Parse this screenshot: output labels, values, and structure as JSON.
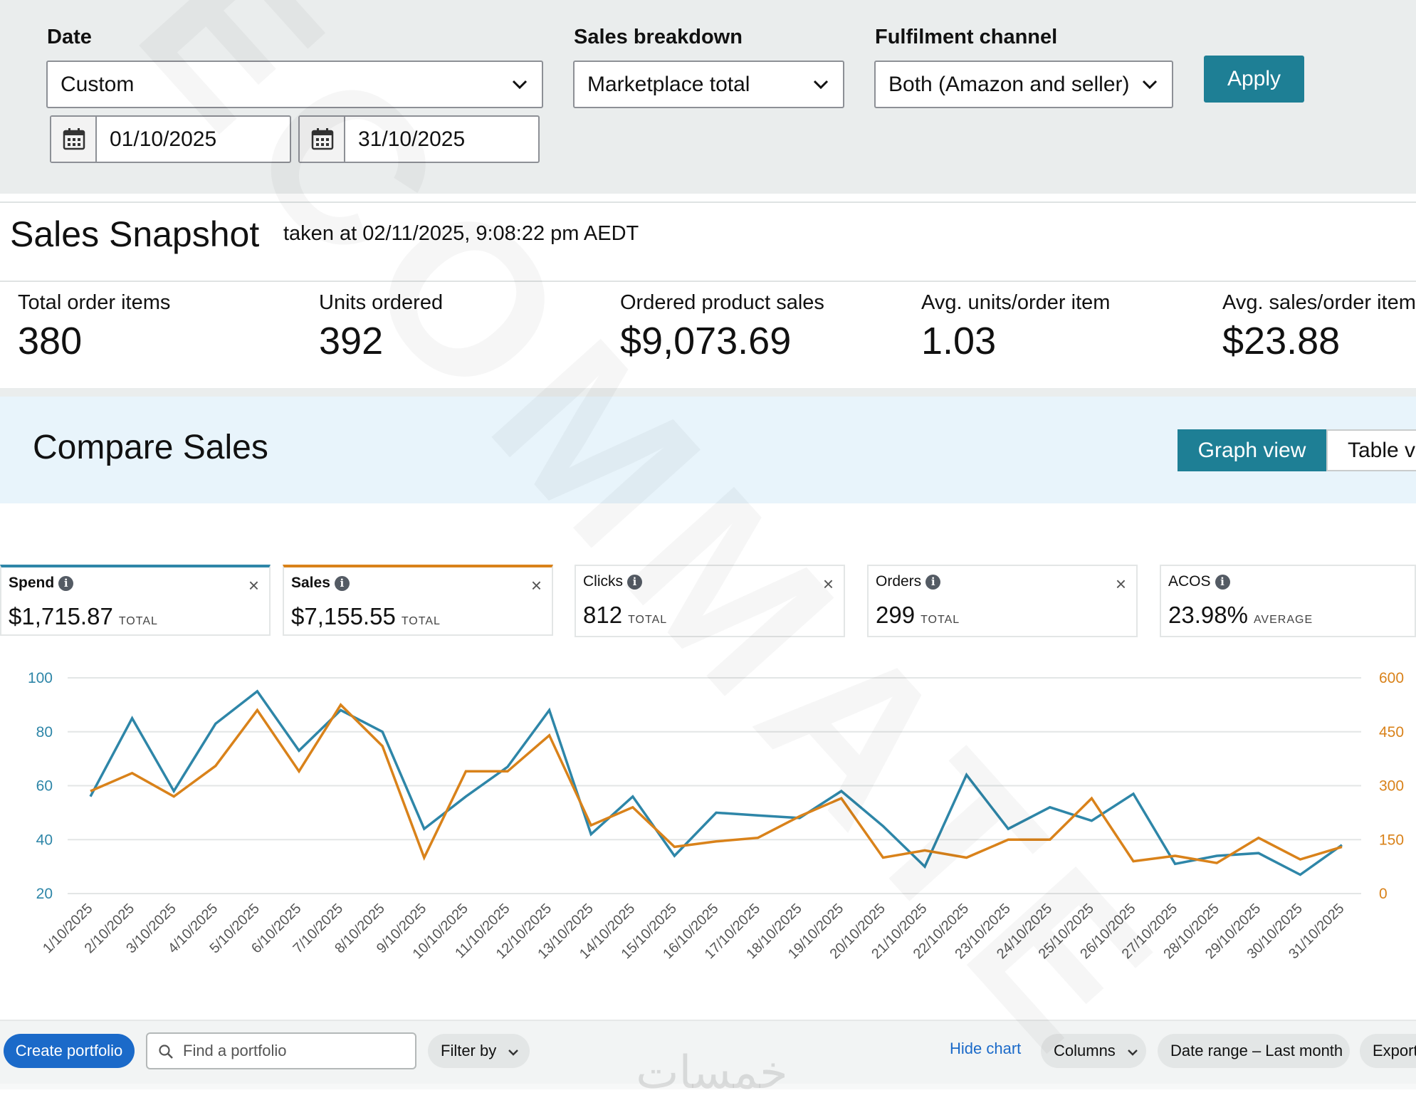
{
  "filters": {
    "date_label": "Date",
    "date_value": "Custom",
    "start_date": "01/10/2025",
    "end_date": "31/10/2025",
    "breakdown_label": "Sales breakdown",
    "breakdown_value": "Marketplace total",
    "channel_label": "Fulfilment channel",
    "channel_value": "Both (Amazon and seller)",
    "apply_label": "Apply"
  },
  "snapshot": {
    "title": "Sales Snapshot",
    "taken_at": "taken at 02/11/2025, 9:08:22 pm AEDT",
    "metrics": [
      {
        "label": "Total order items",
        "value": "380"
      },
      {
        "label": "Units ordered",
        "value": "392"
      },
      {
        "label": "Ordered product sales",
        "value": "$9,073.69"
      },
      {
        "label": "Avg. units/order item",
        "value": "1.03"
      },
      {
        "label": "Avg. sales/order item",
        "value": "$23.88"
      }
    ]
  },
  "compare": {
    "title": "Compare Sales",
    "graph_view": "Graph view",
    "table_view": "Table view"
  },
  "cards": [
    {
      "title": "Spend",
      "value": "$1,715.87",
      "unit": "TOTAL",
      "close": "×"
    },
    {
      "title": "Sales",
      "value": "$7,155.55",
      "unit": "TOTAL",
      "close": "×"
    },
    {
      "title": "Clicks",
      "value": "812",
      "unit": "TOTAL",
      "close": "×"
    },
    {
      "title": "Orders",
      "value": "299",
      "unit": "TOTAL",
      "close": "×"
    },
    {
      "title": "ACOS",
      "value": "23.98%",
      "unit": "AVERAGE",
      "close": ""
    }
  ],
  "chart_data": {
    "type": "line",
    "categories": [
      "1/10/2025",
      "2/10/2025",
      "3/10/2025",
      "4/10/2025",
      "5/10/2025",
      "6/10/2025",
      "7/10/2025",
      "8/10/2025",
      "9/10/2025",
      "10/10/2025",
      "11/10/2025",
      "12/10/2025",
      "13/10/2025",
      "14/10/2025",
      "15/10/2025",
      "16/10/2025",
      "17/10/2025",
      "18/10/2025",
      "19/10/2025",
      "20/10/2025",
      "21/10/2025",
      "22/10/2025",
      "23/10/2025",
      "24/10/2025",
      "25/10/2025",
      "26/10/2025",
      "27/10/2025",
      "28/10/2025",
      "29/10/2025",
      "30/10/2025",
      "31/10/2025"
    ],
    "series": [
      {
        "name": "Spend",
        "axis": "left",
        "color": "#2e86a8",
        "values": [
          56,
          85,
          58,
          83,
          95,
          73,
          88,
          80,
          44,
          56,
          67,
          88,
          42,
          56,
          34,
          50,
          49,
          48,
          58,
          45,
          30,
          64,
          44,
          52,
          47,
          57,
          31,
          34,
          35,
          27,
          38
        ]
      },
      {
        "name": "Sales",
        "axis": "right",
        "color": "#d9821a",
        "values": [
          285,
          335,
          270,
          355,
          510,
          340,
          525,
          410,
          100,
          340,
          340,
          440,
          190,
          240,
          130,
          145,
          155,
          215,
          265,
          100,
          120,
          100,
          150,
          150,
          265,
          90,
          105,
          85,
          155,
          95,
          130
        ]
      }
    ],
    "y_left": {
      "ticks": [
        20,
        40,
        60,
        80,
        100
      ],
      "range": [
        20,
        100
      ],
      "color": "#2e86a8"
    },
    "y_right": {
      "ticks": [
        0,
        150,
        300,
        450,
        600
      ],
      "range": [
        0,
        600
      ],
      "color": "#d9821a"
    },
    "grid": true
  },
  "toolbar": {
    "create_portfolio": "Create portfolio",
    "search_placeholder": "Find a portfolio",
    "filter_by": "Filter by",
    "hide_chart": "Hide chart",
    "columns": "Columns",
    "date_range": "Date range – Last month",
    "export": "Export"
  },
  "watermarks": [
    "ECOMMATE",
    "خمسات"
  ]
}
